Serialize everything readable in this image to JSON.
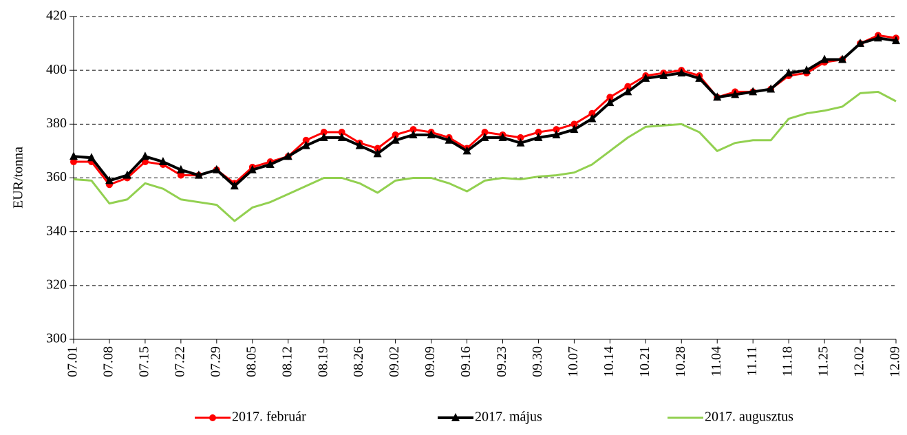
{
  "chart_data": {
    "type": "line",
    "y_label": "EUR/tonna",
    "categories": [
      "07.01",
      null,
      "07.08",
      null,
      "07.15",
      null,
      "07.22",
      null,
      "07.29",
      null,
      "08.05",
      null,
      "08.12",
      null,
      "08.19",
      null,
      "08.26",
      null,
      "09.02",
      null,
      "09.09",
      null,
      "09.16",
      null,
      "09.23",
      null,
      "09.30",
      null,
      "10.07",
      null,
      "10.14",
      null,
      "10.21",
      null,
      "10.28",
      null,
      "11.04",
      null,
      "11.11",
      null,
      "11.18",
      null,
      "11.25",
      null,
      "12.02",
      null,
      "12.09"
    ],
    "series": [
      {
        "name": "2017. február",
        "color": "#ff0000",
        "marker": "circle",
        "values": [
          366,
          366,
          357.5,
          360,
          366,
          365,
          361,
          361,
          363,
          358,
          364,
          366,
          368,
          374,
          377,
          377,
          373,
          371,
          376,
          378,
          377,
          375,
          371,
          377,
          376,
          375,
          377,
          378,
          380,
          384,
          390,
          394,
          398,
          399,
          400,
          398,
          390,
          392,
          392,
          393,
          398,
          399,
          403,
          404,
          410,
          413,
          412
        ]
      },
      {
        "name": "2017. május",
        "color": "#000000",
        "marker": "triangle",
        "values": [
          368,
          367.5,
          359,
          361,
          368,
          366,
          363,
          361,
          363,
          357,
          363,
          365,
          368,
          372,
          375,
          375,
          372,
          369,
          374,
          376,
          376,
          374,
          370,
          375,
          375,
          373,
          375,
          376,
          378,
          382,
          388,
          392,
          397,
          398,
          399,
          397,
          390,
          391,
          392,
          393,
          399,
          400,
          404,
          404,
          410,
          412,
          411
        ]
      },
      {
        "name": "2017. augusztus",
        "color": "#92d050",
        "marker": "none",
        "values": [
          359.5,
          359,
          350.5,
          352,
          358,
          356,
          352,
          351,
          350,
          344,
          349,
          351,
          354,
          357,
          360,
          360,
          358,
          354.5,
          359,
          360,
          360,
          358,
          355,
          359,
          360,
          359.5,
          360.5,
          361,
          362,
          365,
          370,
          375,
          379,
          379.5,
          380,
          377,
          370,
          373,
          374,
          374,
          382,
          384,
          385,
          386.5,
          391.5,
          392,
          388.5
        ]
      }
    ],
    "ylim": [
      300,
      420
    ],
    "yticks": [
      300,
      320,
      340,
      360,
      380,
      400,
      420
    ],
    "grid": true,
    "legend": "bottom"
  }
}
